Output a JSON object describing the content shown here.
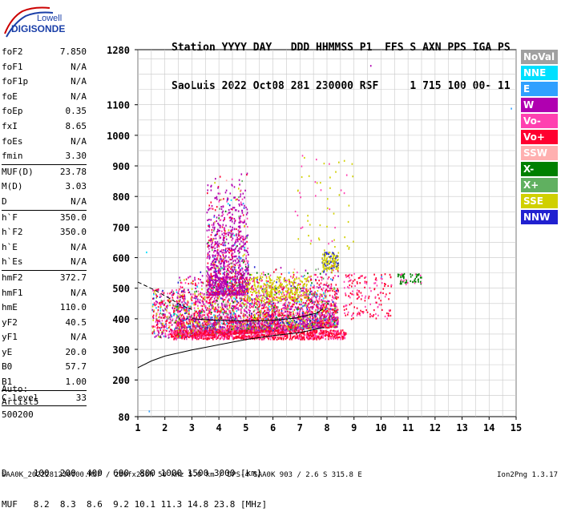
{
  "logo": {
    "top": "Lowell",
    "bottom": "DIGISONDE"
  },
  "header": {
    "line1": "Station YYYY DAY   DDD HHMMSS P1  FFS S AXN PPS IGA PS",
    "line2": "SaoLuis 2022 Oct08 281 230000 RSF     1 715 100 00- 11"
  },
  "params": {
    "g1": [
      [
        "foF2",
        "7.850"
      ],
      [
        "foF1",
        "N/A"
      ],
      [
        "foF1p",
        "N/A"
      ],
      [
        "foE",
        "N/A"
      ],
      [
        "foEp",
        "0.35"
      ],
      [
        "fxI",
        "8.65"
      ],
      [
        "foEs",
        "N/A"
      ],
      [
        "fmin",
        "3.30"
      ]
    ],
    "g2": [
      [
        "MUF(D)",
        "23.78"
      ],
      [
        "M(D)",
        "3.03"
      ],
      [
        "D",
        "N/A"
      ]
    ],
    "g3": [
      [
        "h`F",
        "350.0"
      ],
      [
        "h`F2",
        "350.0"
      ],
      [
        "h`E",
        "N/A"
      ],
      [
        "h`Es",
        "N/A"
      ]
    ],
    "g4": [
      [
        "hmF2",
        "372.7"
      ],
      [
        "hmF1",
        "N/A"
      ],
      [
        "hmE",
        "110.0"
      ],
      [
        "yF2",
        "40.5"
      ],
      [
        "yF1",
        "N/A"
      ],
      [
        "yE",
        "20.0"
      ],
      [
        "B0",
        "57.7"
      ],
      [
        "B1",
        "1.00"
      ]
    ],
    "g5": [
      [
        "C-level",
        "33"
      ]
    ]
  },
  "auto": {
    "line1": "Auto:",
    "line2": "Artist5",
    "line3": "500200"
  },
  "legend": [
    {
      "label": "NoVal",
      "color": "#a0a0a0"
    },
    {
      "label": "NNE",
      "color": "#00e0ff"
    },
    {
      "label": "E",
      "color": "#30a0ff"
    },
    {
      "label": "W",
      "color": "#b000b0"
    },
    {
      "label": "Vo-",
      "color": "#ff40b0"
    },
    {
      "label": "Vo+",
      "color": "#ff0030"
    },
    {
      "label": "SSW",
      "color": "#ffb0b0"
    },
    {
      "label": "X-",
      "color": "#008000"
    },
    {
      "label": "X+",
      "color": "#60b060"
    },
    {
      "label": "SSE",
      "color": "#d0d000"
    },
    {
      "label": "NNW",
      "color": "#2020d0"
    }
  ],
  "muf_table": {
    "row1": "D     100  200  400  600  800 1000 1500 3000 [km]",
    "row2": "MUF   8.2  8.3  8.6  9.2 10.1 11.3 14.8 23.8 [MHz]"
  },
  "footer": "SAA0K_2022281230000.RSF / 280fx256h 50 kHz 5.0 km / DPS-4 SAA0K 903 / 2.6 S 315.8 E",
  "version": "Ion2Png 1.3.17",
  "chart_data": {
    "type": "scatter",
    "x_ticks": [
      "1",
      "2",
      "3",
      "4",
      "5",
      "6",
      "7",
      "8",
      "9",
      "10",
      "11",
      "12",
      "13",
      "14",
      "15"
    ],
    "y_ticks": [
      "80",
      "200",
      "300",
      "400",
      "500",
      "600",
      "700",
      "800",
      "900",
      "1000",
      "1100",
      "1280"
    ],
    "xlim": [
      1,
      15
    ],
    "ylim": [
      80,
      1280
    ],
    "traces": {
      "height_profile": [
        [
          1,
          240
        ],
        [
          1.5,
          262
        ],
        [
          2,
          278
        ],
        [
          3,
          298
        ],
        [
          4,
          315
        ],
        [
          5,
          332
        ],
        [
          6,
          345
        ],
        [
          7,
          355
        ],
        [
          7.9,
          372
        ]
      ],
      "dashed_trace": [
        [
          1,
          520
        ],
        [
          1.6,
          495
        ],
        [
          2.1,
          470
        ],
        [
          2.6,
          445
        ],
        [
          3,
          430
        ]
      ],
      "virtual_trace": [
        [
          3,
          400
        ],
        [
          4,
          395
        ],
        [
          5,
          393
        ],
        [
          6,
          395
        ],
        [
          6.8,
          402
        ],
        [
          7.3,
          412
        ],
        [
          7.6,
          418
        ],
        [
          7.85,
          432
        ]
      ]
    }
  }
}
